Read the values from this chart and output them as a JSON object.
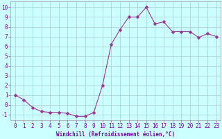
{
  "x": [
    0,
    1,
    2,
    3,
    4,
    5,
    6,
    7,
    8,
    9,
    10,
    11,
    12,
    13,
    14,
    15,
    16,
    17,
    18,
    19,
    20,
    21,
    22,
    23
  ],
  "y": [
    1.0,
    0.5,
    -0.3,
    -0.7,
    -0.8,
    -0.8,
    -0.9,
    -1.2,
    -1.2,
    -0.8,
    2.0,
    6.2,
    7.7,
    9.0,
    9.0,
    10.0,
    8.3,
    8.5,
    7.5,
    7.5,
    7.5,
    6.9,
    7.3,
    7.0
  ],
  "line_color": "#993399",
  "marker": "D",
  "markersize": 2.5,
  "linewidth": 0.8,
  "bg_color": "#ccffff",
  "grid_color": "#aacccc",
  "xlabel": "Windchill (Refroidissement éolien,°C)",
  "xlabel_fontsize": 5.5,
  "ylabel_ticks": [
    -1,
    0,
    1,
    2,
    3,
    4,
    5,
    6,
    7,
    8,
    9,
    10
  ],
  "xtick_labels": [
    "0",
    "1",
    "2",
    "3",
    "4",
    "5",
    "6",
    "7",
    "8",
    "9",
    "10",
    "11",
    "12",
    "13",
    "14",
    "15",
    "16",
    "17",
    "18",
    "19",
    "20",
    "21",
    "22",
    "23"
  ],
  "ylim": [
    -1.6,
    10.6
  ],
  "xlim": [
    -0.5,
    23.5
  ],
  "tick_fontsize": 5.5,
  "tick_color": "#7700aa",
  "axes_color": "#7700aa",
  "spine_color": "#aaaaaa"
}
